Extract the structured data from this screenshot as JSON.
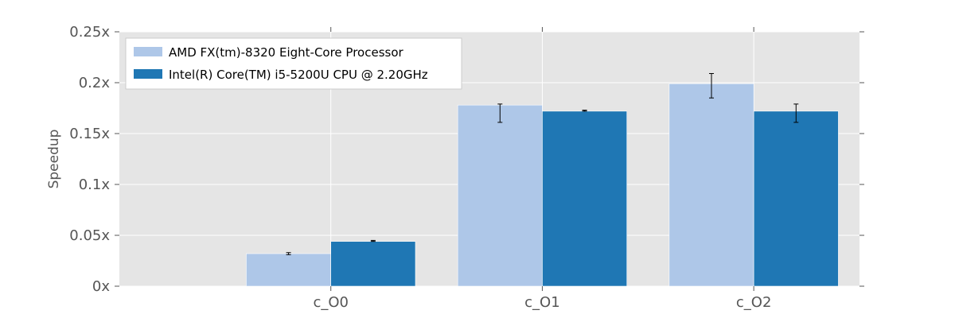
{
  "chart_data": {
    "type": "bar",
    "title": "",
    "xlabel": "",
    "ylabel": "Speedup",
    "ylim": [
      0,
      0.25
    ],
    "yticks": [
      {
        "value": 0,
        "label": "0x"
      },
      {
        "value": 0.05,
        "label": "0.05x"
      },
      {
        "value": 0.1,
        "label": "0.1x"
      },
      {
        "value": 0.15,
        "label": "0.15x"
      },
      {
        "value": 0.2,
        "label": "0.2x"
      },
      {
        "value": 0.25,
        "label": "0.25x"
      }
    ],
    "categories": [
      "c_O0",
      "c_O1",
      "c_O2"
    ],
    "grid": true,
    "legend_position": "top-left",
    "series": [
      {
        "name": "AMD FX(tm)-8320 Eight-Core Processor",
        "color": "#aec7e8",
        "values": [
          0.032,
          0.178,
          0.199
        ],
        "error_low": [
          0.031,
          0.161,
          0.185
        ],
        "error_high": [
          0.033,
          0.179,
          0.209
        ]
      },
      {
        "name": "Intel(R) Core(TM) i5-5200U CPU @ 2.20GHz",
        "color": "#1f77b4",
        "values": [
          0.044,
          0.172,
          0.172
        ],
        "error_low": [
          0.044,
          0.172,
          0.161
        ],
        "error_high": [
          0.045,
          0.173,
          0.179
        ]
      }
    ],
    "colors": {
      "plot_background": "#e5e5e5",
      "grid": "#ffffff",
      "tick_text": "#555555",
      "error_bar": "#000000"
    }
  }
}
